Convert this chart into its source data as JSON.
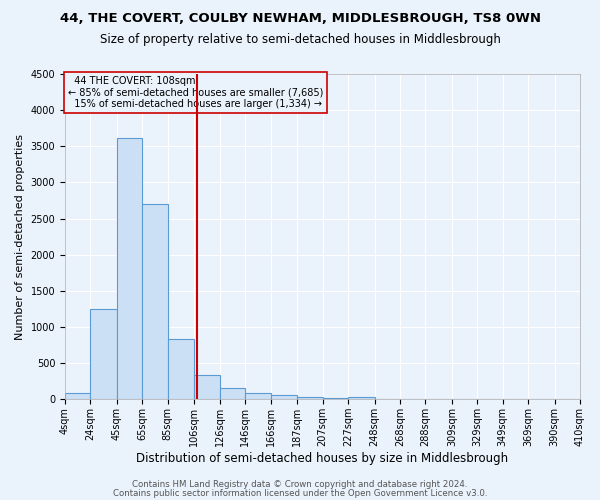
{
  "title1": "44, THE COVERT, COULBY NEWHAM, MIDDLESBROUGH, TS8 0WN",
  "title2": "Size of property relative to semi-detached houses in Middlesbrough",
  "xlabel": "Distribution of semi-detached houses by size in Middlesbrough",
  "ylabel": "Number of semi-detached properties",
  "footnote1": "Contains HM Land Registry data © Crown copyright and database right 2024.",
  "footnote2": "Contains public sector information licensed under the Open Government Licence v3.0.",
  "bar_edges": [
    4,
    24,
    45,
    65,
    85,
    106,
    126,
    146,
    166,
    187,
    207,
    227,
    248,
    268,
    288,
    309,
    329,
    349,
    369,
    390,
    410
  ],
  "bar_heights": [
    90,
    1250,
    3620,
    2700,
    830,
    330,
    155,
    90,
    55,
    30,
    20,
    35,
    0,
    0,
    0,
    0,
    0,
    0,
    0,
    0
  ],
  "x_tick_labels": [
    "4sqm",
    "24sqm",
    "45sqm",
    "65sqm",
    "85sqm",
    "106sqm",
    "126sqm",
    "146sqm",
    "166sqm",
    "187sqm",
    "207sqm",
    "227sqm",
    "248sqm",
    "268sqm",
    "288sqm",
    "309sqm",
    "329sqm",
    "349sqm",
    "369sqm",
    "390sqm",
    "410sqm"
  ],
  "property_size": 108,
  "property_label": "44 THE COVERT: 108sqm",
  "pct_smaller": 85,
  "n_smaller": "7,685",
  "pct_larger": 15,
  "n_larger": "1,334",
  "bar_facecolor": "#cce0f5",
  "bar_edgecolor": "#5b9bd5",
  "vline_color": "#cc0000",
  "annotation_box_edgecolor": "#cc0000",
  "background_color": "#eaf2fb",
  "grid_color": "#ffffff",
  "ylim": [
    0,
    4500
  ],
  "title1_fontsize": 9.5,
  "title2_fontsize": 8.5,
  "xlabel_fontsize": 8.5,
  "ylabel_fontsize": 8,
  "tick_fontsize": 7,
  "footnote_fontsize": 6.2
}
